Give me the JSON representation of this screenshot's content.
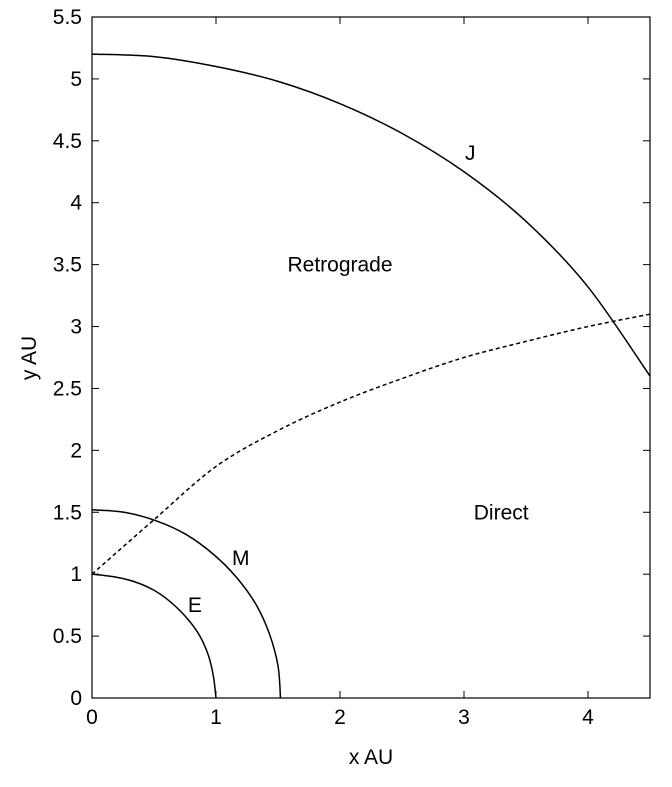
{
  "chart_data": {
    "type": "line",
    "xlabel": "x AU",
    "ylabel": "y AU",
    "xlim": [
      0,
      4.5
    ],
    "ylim": [
      0,
      5.5
    ],
    "xticks": [
      0,
      1,
      2,
      3,
      4
    ],
    "yticks": [
      0,
      0.5,
      1,
      1.5,
      2,
      2.5,
      3,
      3.5,
      4,
      4.5,
      5,
      5.5
    ],
    "annotations": [
      "Retrograde",
      "Direct"
    ],
    "series": [
      {
        "name": "E",
        "color": "#000000",
        "dashed": false,
        "x": [
          0,
          0.17,
          0.34,
          0.5,
          0.64,
          0.77,
          0.87,
          0.94,
          0.98,
          1
        ],
        "values": [
          1,
          0.98,
          0.94,
          0.87,
          0.77,
          0.64,
          0.5,
          0.34,
          0.17,
          0
        ]
      },
      {
        "name": "M",
        "color": "#000000",
        "dashed": false,
        "x": [
          0,
          0.26,
          0.52,
          0.76,
          0.98,
          1.16,
          1.32,
          1.43,
          1.5,
          1.52
        ],
        "values": [
          1.52,
          1.5,
          1.43,
          1.32,
          1.16,
          0.98,
          0.76,
          0.52,
          0.26,
          0
        ]
      },
      {
        "name": "J",
        "color": "#000000",
        "dashed": false,
        "x": [
          0,
          0.5,
          1,
          1.5,
          2,
          2.5,
          3,
          3.5,
          4,
          4.5
        ],
        "values": [
          5.2,
          5.18,
          5.1,
          4.98,
          4.8,
          4.56,
          4.25,
          3.85,
          3.32,
          2.6
        ]
      },
      {
        "color": "#000000",
        "dashed": true,
        "x": [
          0,
          0.5,
          1,
          1.5,
          2,
          2.5,
          3,
          3.5,
          4,
          4.5
        ],
        "values": [
          1,
          1.44,
          1.87,
          2.16,
          2.39,
          2.58,
          2.75,
          2.88,
          3.0,
          3.1
        ]
      }
    ]
  }
}
